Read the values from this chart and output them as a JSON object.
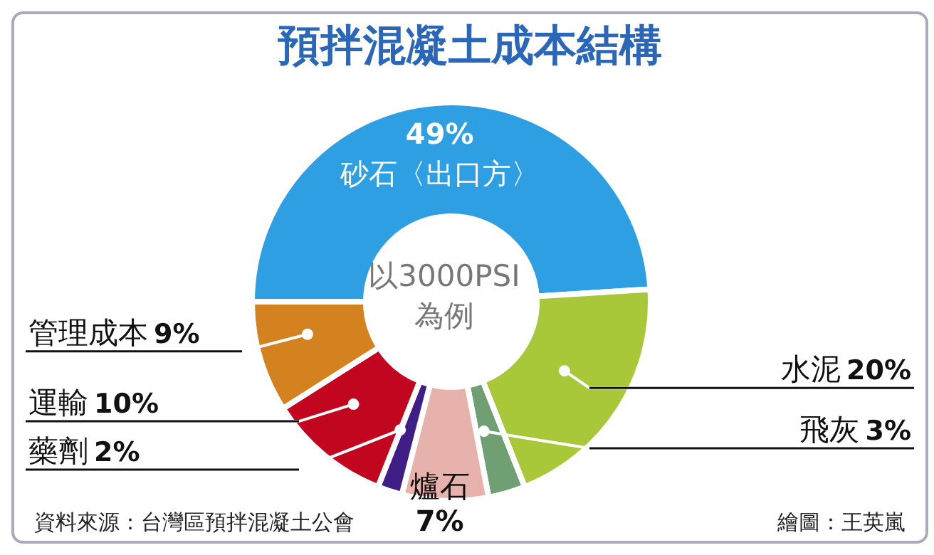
{
  "chart_data": {
    "type": "donut",
    "title": "預拌混凝土成本結構",
    "categories": [
      "砂石〈出口方〉",
      "水泥",
      "飛灰",
      "爐石",
      "藥劑",
      "運輸",
      "管理成本"
    ],
    "values": [
      49,
      20,
      3,
      7,
      2,
      10,
      9
    ],
    "value_labels": [
      "49%",
      "20%",
      "3%",
      "7%",
      "2%",
      "10%",
      "9%"
    ],
    "colors": [
      "#2f9fe3",
      "#a8c83a",
      "#6f9f72",
      "#e8b2ac",
      "#3f1f86",
      "#c2061f",
      "#d4821f"
    ],
    "legend": false,
    "annotations": [
      "以3000PSI",
      "為例",
      "資料來源：台灣區預拌混凝土公會",
      "繪圖：王英嵐"
    ]
  }
}
